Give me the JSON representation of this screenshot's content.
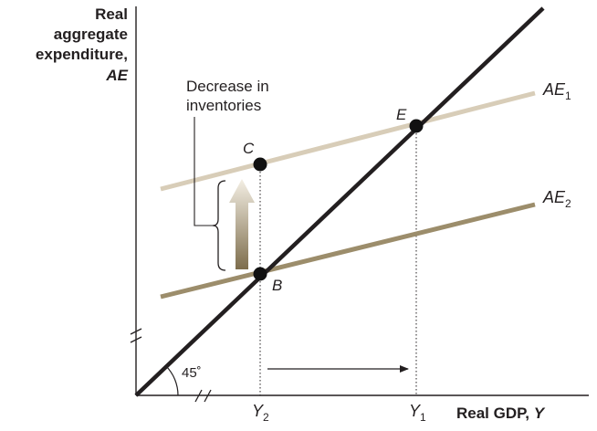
{
  "y_axis_label": {
    "line1": "Real",
    "line2": "aggregate",
    "line3": "expenditure,",
    "line4": "AE"
  },
  "x_axis_label": {
    "text": "Real GDP, ",
    "var": "Y"
  },
  "annotation": {
    "line1": "Decrease in",
    "line2": "inventories"
  },
  "angle_label": "45˚",
  "points": {
    "C": "C",
    "E": "E",
    "B": "B"
  },
  "lines": {
    "ae1": {
      "base": "AE",
      "sub": "1"
    },
    "ae2": {
      "base": "AE",
      "sub": "2"
    }
  },
  "x_ticks": {
    "y2": {
      "base": "Y",
      "sub": "2"
    },
    "y1": {
      "base": "Y",
      "sub": "1"
    }
  },
  "colors": {
    "axis": "#231f20",
    "line_45": "#231f20",
    "ae1": "#d8cdb8",
    "ae2": "#9c8d6b",
    "arrow_top": "#f4efe4",
    "arrow_bottom": "#7d6d4c",
    "point": "#111111"
  }
}
